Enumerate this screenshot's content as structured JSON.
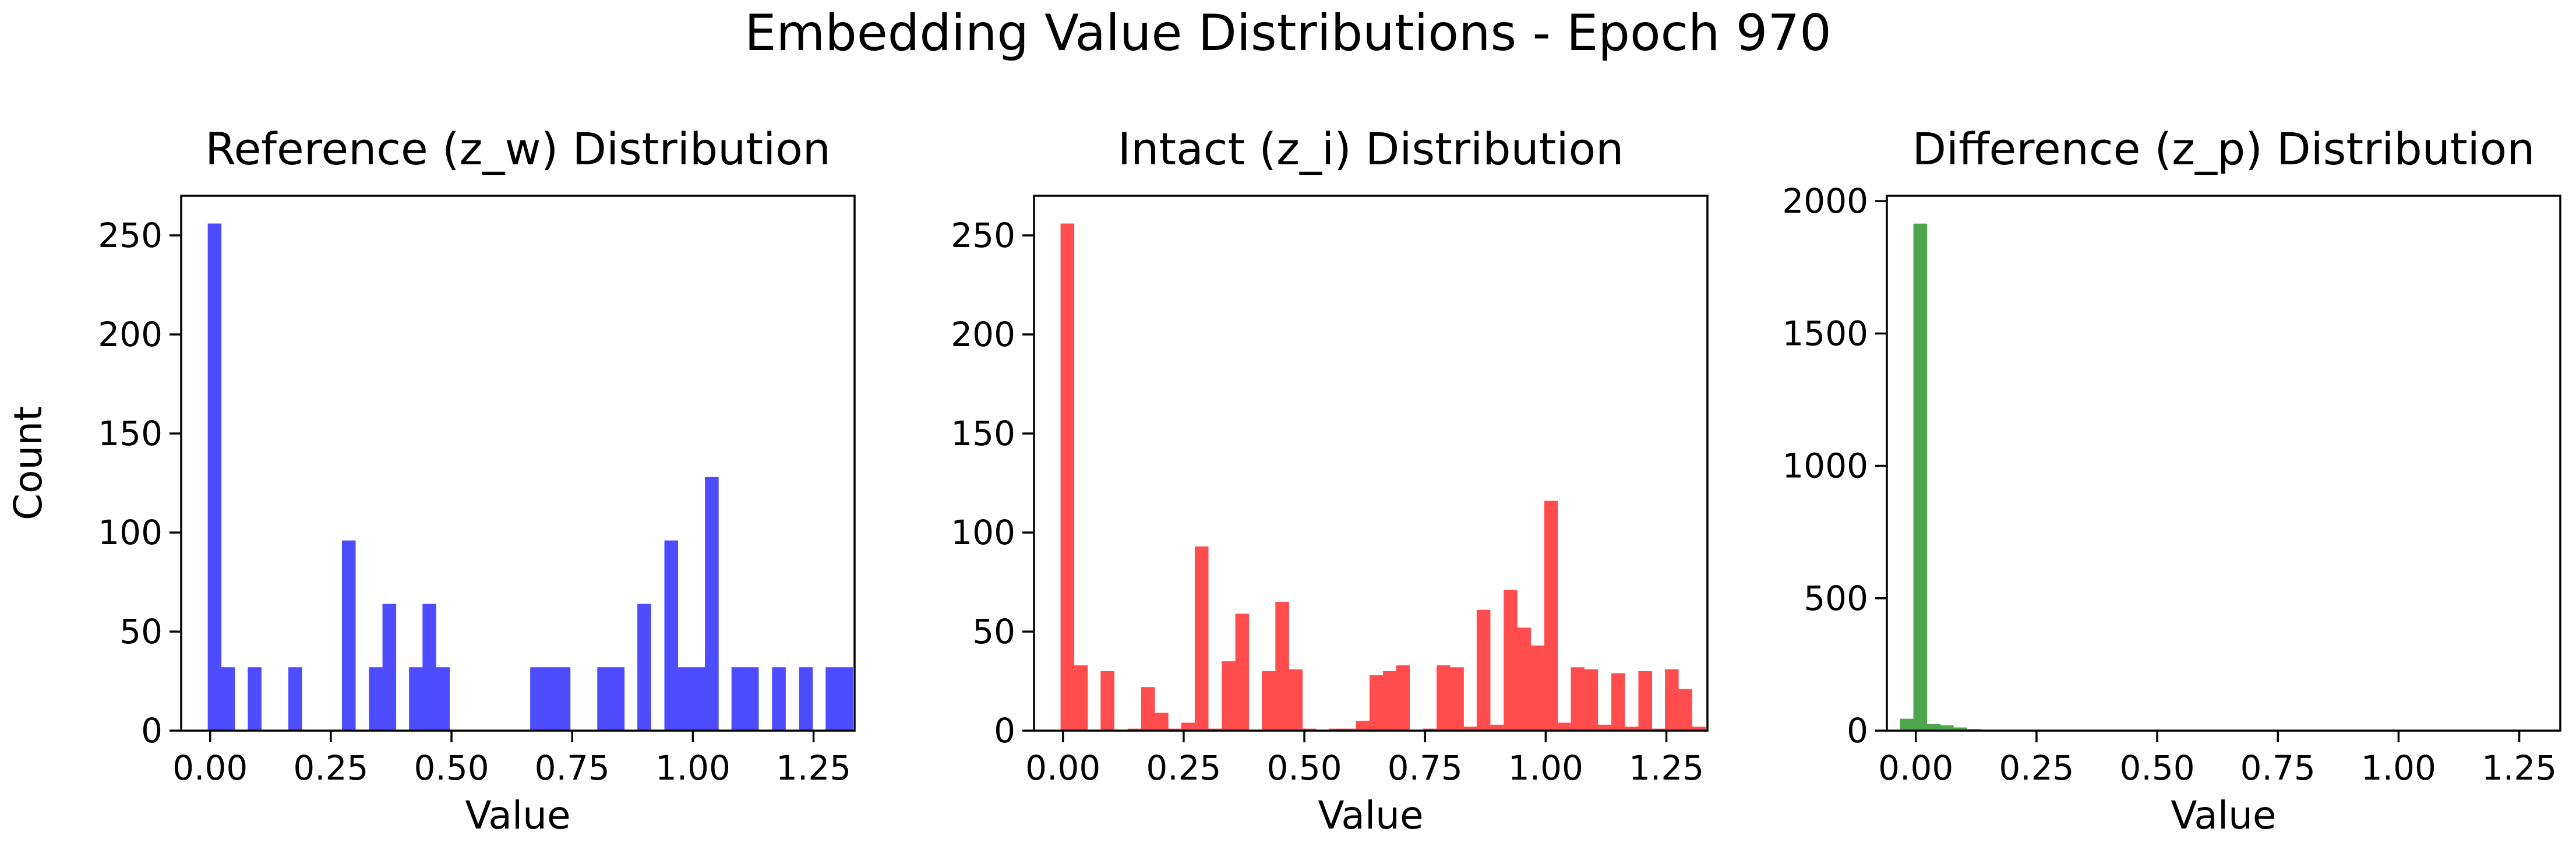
{
  "figure": {
    "title": "Embedding Value Distributions - Epoch 970"
  },
  "chart_data": [
    {
      "type": "bar",
      "title": "Reference (z_w) Distribution",
      "xlabel": "Value",
      "ylabel": "Count",
      "color": "#4d4dff",
      "xlim": [
        -0.06,
        1.335
      ],
      "ylim": [
        0,
        270
      ],
      "xticks": [
        0.0,
        0.25,
        0.5,
        0.75,
        1.0,
        1.25
      ],
      "xtick_labels": [
        "0.00",
        "0.25",
        "0.50",
        "0.75",
        "1.00",
        "1.25"
      ],
      "yticks": [
        0,
        50,
        100,
        150,
        200,
        250
      ],
      "ytick_labels": [
        "0",
        "50",
        "100",
        "150",
        "200",
        "250"
      ],
      "bin_width": 0.0278,
      "bins": [
        {
          "x": -0.005,
          "count": 256
        },
        {
          "x": 0.023,
          "count": 32
        },
        {
          "x": 0.078,
          "count": 32
        },
        {
          "x": 0.162,
          "count": 32
        },
        {
          "x": 0.273,
          "count": 96
        },
        {
          "x": 0.329,
          "count": 32
        },
        {
          "x": 0.357,
          "count": 64
        },
        {
          "x": 0.412,
          "count": 32
        },
        {
          "x": 0.44,
          "count": 64
        },
        {
          "x": 0.468,
          "count": 32
        },
        {
          "x": 0.663,
          "count": 32
        },
        {
          "x": 0.69,
          "count": 32
        },
        {
          "x": 0.718,
          "count": 32
        },
        {
          "x": 0.802,
          "count": 32
        },
        {
          "x": 0.83,
          "count": 32
        },
        {
          "x": 0.885,
          "count": 64
        },
        {
          "x": 0.941,
          "count": 96
        },
        {
          "x": 0.969,
          "count": 32
        },
        {
          "x": 0.997,
          "count": 32
        },
        {
          "x": 1.025,
          "count": 128
        },
        {
          "x": 1.08,
          "count": 32
        },
        {
          "x": 1.108,
          "count": 32
        },
        {
          "x": 1.164,
          "count": 32
        },
        {
          "x": 1.22,
          "count": 32
        },
        {
          "x": 1.275,
          "count": 32
        },
        {
          "x": 1.303,
          "count": 32
        }
      ]
    },
    {
      "type": "bar",
      "title": "Intact (z_i) Distribution",
      "xlabel": "Value",
      "ylabel": "",
      "color": "#ff4d4d",
      "xlim": [
        -0.06,
        1.335
      ],
      "ylim": [
        0,
        270
      ],
      "xticks": [
        0.0,
        0.25,
        0.5,
        0.75,
        1.0,
        1.25
      ],
      "xtick_labels": [
        "0.00",
        "0.25",
        "0.50",
        "0.75",
        "1.00",
        "1.25"
      ],
      "yticks": [
        0,
        50,
        100,
        150,
        200,
        250
      ],
      "ytick_labels": [
        "0",
        "50",
        "100",
        "150",
        "200",
        "250"
      ],
      "bin_width": 0.0278,
      "bins": [
        {
          "x": -0.005,
          "count": 256
        },
        {
          "x": 0.023,
          "count": 33
        },
        {
          "x": 0.078,
          "count": 30
        },
        {
          "x": 0.134,
          "count": 1
        },
        {
          "x": 0.162,
          "count": 22
        },
        {
          "x": 0.19,
          "count": 9
        },
        {
          "x": 0.218,
          "count": 1
        },
        {
          "x": 0.245,
          "count": 4
        },
        {
          "x": 0.273,
          "count": 93
        },
        {
          "x": 0.301,
          "count": 1
        },
        {
          "x": 0.329,
          "count": 35
        },
        {
          "x": 0.357,
          "count": 59
        },
        {
          "x": 0.412,
          "count": 30
        },
        {
          "x": 0.44,
          "count": 65
        },
        {
          "x": 0.468,
          "count": 31
        },
        {
          "x": 0.496,
          "count": 1
        },
        {
          "x": 0.551,
          "count": 1
        },
        {
          "x": 0.579,
          "count": 1
        },
        {
          "x": 0.607,
          "count": 5
        },
        {
          "x": 0.635,
          "count": 28
        },
        {
          "x": 0.663,
          "count": 30
        },
        {
          "x": 0.69,
          "count": 33
        },
        {
          "x": 0.746,
          "count": 1
        },
        {
          "x": 0.774,
          "count": 33
        },
        {
          "x": 0.802,
          "count": 32
        },
        {
          "x": 0.83,
          "count": 2
        },
        {
          "x": 0.857,
          "count": 61
        },
        {
          "x": 0.885,
          "count": 3
        },
        {
          "x": 0.913,
          "count": 71
        },
        {
          "x": 0.941,
          "count": 52
        },
        {
          "x": 0.969,
          "count": 43
        },
        {
          "x": 0.997,
          "count": 116
        },
        {
          "x": 1.025,
          "count": 4
        },
        {
          "x": 1.052,
          "count": 32
        },
        {
          "x": 1.08,
          "count": 31
        },
        {
          "x": 1.108,
          "count": 3
        },
        {
          "x": 1.136,
          "count": 29
        },
        {
          "x": 1.164,
          "count": 2
        },
        {
          "x": 1.192,
          "count": 30
        },
        {
          "x": 1.22,
          "count": 1
        },
        {
          "x": 1.247,
          "count": 31
        },
        {
          "x": 1.275,
          "count": 21
        },
        {
          "x": 1.303,
          "count": 2
        }
      ]
    },
    {
      "type": "bar",
      "title": "Difference (z_p) Distribution",
      "xlabel": "Value",
      "ylabel": "",
      "color": "#4da64d",
      "xlim": [
        -0.06,
        1.335
      ],
      "ylim": [
        0,
        2020
      ],
      "xticks": [
        0.0,
        0.25,
        0.5,
        0.75,
        1.0,
        1.25
      ],
      "xtick_labels": [
        "0.00",
        "0.25",
        "0.50",
        "0.75",
        "1.00",
        "1.25"
      ],
      "yticks": [
        0,
        500,
        1000,
        1500,
        2000
      ],
      "ytick_labels": [
        "0",
        "500",
        "1000",
        "1500",
        "2000"
      ],
      "bin_width": 0.0278,
      "bins": [
        {
          "x": -0.033,
          "count": 45
        },
        {
          "x": -0.005,
          "count": 1915
        },
        {
          "x": 0.023,
          "count": 25
        },
        {
          "x": 0.05,
          "count": 20
        },
        {
          "x": 0.078,
          "count": 12
        },
        {
          "x": 0.106,
          "count": 6
        },
        {
          "x": 0.134,
          "count": 3
        },
        {
          "x": 0.162,
          "count": 2
        },
        {
          "x": 0.19,
          "count": 1
        }
      ]
    }
  ]
}
